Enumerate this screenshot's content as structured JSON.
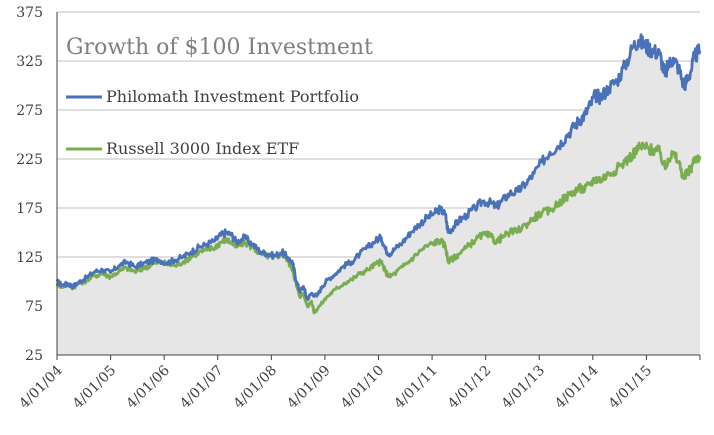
{
  "chart_data": {
    "type": "area",
    "title": "Growth of $100 Investment",
    "xlabel": "",
    "ylabel": "",
    "ylim": [
      25,
      375
    ],
    "yticks": [
      25,
      75,
      125,
      175,
      225,
      275,
      325,
      375
    ],
    "xticks": [
      "4/01/04",
      "4/01/05",
      "4/01/06",
      "4/01/07",
      "4/01/08",
      "4/01/09",
      "4/01/10",
      "4/01/11",
      "4/01/12",
      "4/01/13",
      "4/01/14",
      "4/01/15"
    ],
    "xlim": [
      2004.25,
      2016.25
    ],
    "grid": true,
    "legend_position": "top-left",
    "background_fill": "#e6e6e6",
    "series": [
      {
        "name": "Philomath Investment Portfolio",
        "color": "#4a72b8",
        "points": [
          [
            2004.25,
            100
          ],
          [
            2004.35,
            96
          ],
          [
            2004.45,
            98
          ],
          [
            2004.55,
            95
          ],
          [
            2004.65,
            99
          ],
          [
            2004.8,
            104
          ],
          [
            2004.95,
            110
          ],
          [
            2005.1,
            112
          ],
          [
            2005.25,
            109
          ],
          [
            2005.4,
            116
          ],
          [
            2005.55,
            120
          ],
          [
            2005.7,
            115
          ],
          [
            2005.85,
            118
          ],
          [
            2006.0,
            121
          ],
          [
            2006.15,
            122
          ],
          [
            2006.3,
            119
          ],
          [
            2006.45,
            122
          ],
          [
            2006.6,
            125
          ],
          [
            2006.75,
            130
          ],
          [
            2006.9,
            135
          ],
          [
            2007.05,
            138
          ],
          [
            2007.2,
            142
          ],
          [
            2007.3,
            147
          ],
          [
            2007.4,
            150
          ],
          [
            2007.5,
            148
          ],
          [
            2007.6,
            140
          ],
          [
            2007.75,
            145
          ],
          [
            2007.9,
            138
          ],
          [
            2008.05,
            130
          ],
          [
            2008.2,
            128
          ],
          [
            2008.3,
            126
          ],
          [
            2008.45,
            130
          ],
          [
            2008.55,
            125
          ],
          [
            2008.65,
            118
          ],
          [
            2008.72,
            100
          ],
          [
            2008.78,
            90
          ],
          [
            2008.85,
            95
          ],
          [
            2008.92,
            82
          ],
          [
            2009.0,
            88
          ],
          [
            2009.1,
            85
          ],
          [
            2009.2,
            95
          ],
          [
            2009.3,
            102
          ],
          [
            2009.45,
            108
          ],
          [
            2009.6,
            116
          ],
          [
            2009.75,
            120
          ],
          [
            2009.9,
            128
          ],
          [
            2010.05,
            135
          ],
          [
            2010.2,
            142
          ],
          [
            2010.3,
            145
          ],
          [
            2010.38,
            133
          ],
          [
            2010.45,
            128
          ],
          [
            2010.55,
            133
          ],
          [
            2010.7,
            140
          ],
          [
            2010.85,
            150
          ],
          [
            2011.0,
            158
          ],
          [
            2011.15,
            165
          ],
          [
            2011.3,
            170
          ],
          [
            2011.4,
            174
          ],
          [
            2011.5,
            168
          ],
          [
            2011.55,
            150
          ],
          [
            2011.65,
            156
          ],
          [
            2011.75,
            162
          ],
          [
            2011.9,
            168
          ],
          [
            2012.05,
            175
          ],
          [
            2012.2,
            182
          ],
          [
            2012.35,
            180
          ],
          [
            2012.45,
            176
          ],
          [
            2012.55,
            182
          ],
          [
            2012.7,
            190
          ],
          [
            2012.85,
            192
          ],
          [
            2013.0,
            200
          ],
          [
            2013.15,
            210
          ],
          [
            2013.3,
            222
          ],
          [
            2013.45,
            232
          ],
          [
            2013.6,
            238
          ],
          [
            2013.75,
            248
          ],
          [
            2013.9,
            258
          ],
          [
            2014.0,
            265
          ],
          [
            2014.1,
            270
          ],
          [
            2014.2,
            280
          ],
          [
            2014.3,
            290
          ],
          [
            2014.4,
            288
          ],
          [
            2014.55,
            298
          ],
          [
            2014.7,
            305
          ],
          [
            2014.85,
            320
          ],
          [
            2015.0,
            340
          ],
          [
            2015.1,
            346
          ],
          [
            2015.2,
            342
          ],
          [
            2015.3,
            338
          ],
          [
            2015.4,
            335
          ],
          [
            2015.5,
            332
          ],
          [
            2015.6,
            310
          ],
          [
            2015.65,
            320
          ],
          [
            2015.75,
            328
          ],
          [
            2015.85,
            318
          ],
          [
            2015.95,
            300
          ],
          [
            2016.0,
            305
          ],
          [
            2016.08,
            315
          ],
          [
            2016.15,
            330
          ],
          [
            2016.25,
            335
          ]
        ]
      },
      {
        "name": "Russell 3000 Index ETF",
        "color": "#7aad4f",
        "points": [
          [
            2004.25,
            98
          ],
          [
            2004.35,
            95
          ],
          [
            2004.45,
            97
          ],
          [
            2004.55,
            94
          ],
          [
            2004.65,
            98
          ],
          [
            2004.8,
            101
          ],
          [
            2004.95,
            106
          ],
          [
            2005.1,
            108
          ],
          [
            2005.25,
            105
          ],
          [
            2005.4,
            110
          ],
          [
            2005.55,
            114
          ],
          [
            2005.7,
            110
          ],
          [
            2005.85,
            113
          ],
          [
            2006.0,
            117
          ],
          [
            2006.15,
            120
          ],
          [
            2006.3,
            118
          ],
          [
            2006.45,
            116
          ],
          [
            2006.6,
            120
          ],
          [
            2006.75,
            125
          ],
          [
            2006.9,
            130
          ],
          [
            2007.05,
            132
          ],
          [
            2007.2,
            135
          ],
          [
            2007.3,
            140
          ],
          [
            2007.4,
            143
          ],
          [
            2007.5,
            140
          ],
          [
            2007.6,
            135
          ],
          [
            2007.75,
            140
          ],
          [
            2007.9,
            135
          ],
          [
            2008.05,
            128
          ],
          [
            2008.2,
            126
          ],
          [
            2008.3,
            125
          ],
          [
            2008.45,
            128
          ],
          [
            2008.55,
            122
          ],
          [
            2008.65,
            112
          ],
          [
            2008.72,
            95
          ],
          [
            2008.78,
            85
          ],
          [
            2008.85,
            88
          ],
          [
            2008.92,
            75
          ],
          [
            2009.0,
            80
          ],
          [
            2009.05,
            68
          ],
          [
            2009.15,
            75
          ],
          [
            2009.3,
            85
          ],
          [
            2009.45,
            92
          ],
          [
            2009.6,
            98
          ],
          [
            2009.75,
            102
          ],
          [
            2009.9,
            108
          ],
          [
            2010.05,
            112
          ],
          [
            2010.2,
            118
          ],
          [
            2010.3,
            120
          ],
          [
            2010.38,
            110
          ],
          [
            2010.45,
            105
          ],
          [
            2010.55,
            108
          ],
          [
            2010.7,
            115
          ],
          [
            2010.85,
            122
          ],
          [
            2011.0,
            130
          ],
          [
            2011.15,
            136
          ],
          [
            2011.3,
            140
          ],
          [
            2011.4,
            142
          ],
          [
            2011.5,
            136
          ],
          [
            2011.55,
            120
          ],
          [
            2011.65,
            124
          ],
          [
            2011.75,
            128
          ],
          [
            2011.9,
            135
          ],
          [
            2012.05,
            142
          ],
          [
            2012.2,
            148
          ],
          [
            2012.35,
            146
          ],
          [
            2012.45,
            140
          ],
          [
            2012.55,
            145
          ],
          [
            2012.7,
            150
          ],
          [
            2012.85,
            152
          ],
          [
            2013.0,
            158
          ],
          [
            2013.15,
            165
          ],
          [
            2013.3,
            170
          ],
          [
            2013.45,
            172
          ],
          [
            2013.6,
            180
          ],
          [
            2013.75,
            186
          ],
          [
            2013.9,
            192
          ],
          [
            2014.0,
            195
          ],
          [
            2014.1,
            194
          ],
          [
            2014.2,
            200
          ],
          [
            2014.3,
            205
          ],
          [
            2014.4,
            204
          ],
          [
            2014.55,
            210
          ],
          [
            2014.7,
            215
          ],
          [
            2014.85,
            222
          ],
          [
            2015.0,
            230
          ],
          [
            2015.1,
            236
          ],
          [
            2015.2,
            238
          ],
          [
            2015.3,
            235
          ],
          [
            2015.4,
            234
          ],
          [
            2015.5,
            232
          ],
          [
            2015.6,
            215
          ],
          [
            2015.65,
            225
          ],
          [
            2015.75,
            230
          ],
          [
            2015.85,
            222
          ],
          [
            2015.95,
            205
          ],
          [
            2016.0,
            210
          ],
          [
            2016.08,
            215
          ],
          [
            2016.15,
            225
          ],
          [
            2016.25,
            228
          ]
        ]
      }
    ]
  }
}
